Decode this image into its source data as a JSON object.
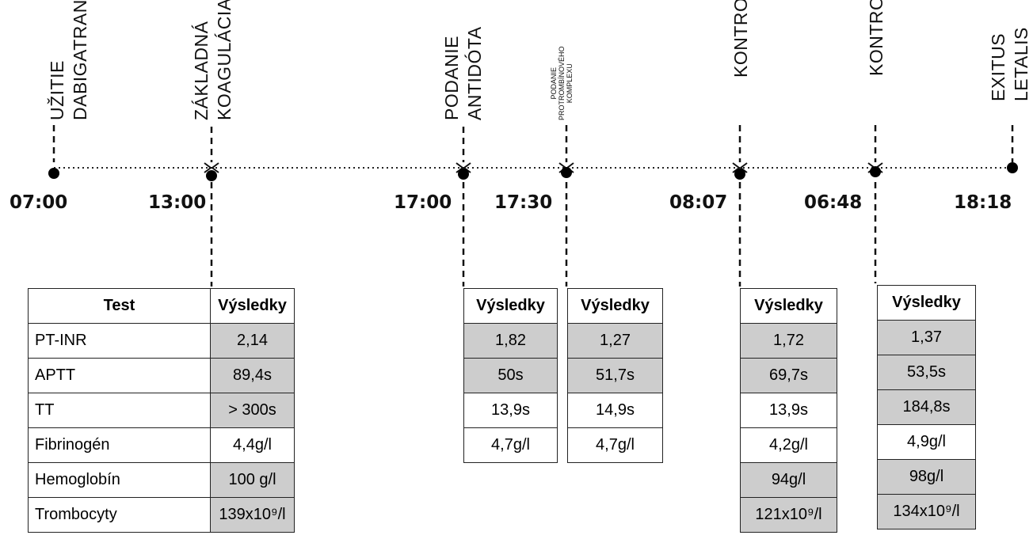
{
  "events": [
    {
      "lines": [
        "UŽITIE",
        "DABIGATRANU"
      ],
      "time": "07:00"
    },
    {
      "lines": [
        "ZÁKLADNÁ",
        "KOAGULÁCIA"
      ],
      "time": "13:00"
    },
    {
      "lines": [
        "PODANIE",
        "ANTIDÓTA"
      ],
      "time": "17:00"
    },
    {
      "lines": [
        "PODANIE",
        "PROTROMBÍNOVÉHO",
        "KOMPLEXU"
      ],
      "time": "17:30"
    },
    {
      "lines": [
        "KONTROLA"
      ],
      "time": "08:07"
    },
    {
      "lines": [
        "KONTROLA"
      ],
      "time": "06:48"
    },
    {
      "lines": [
        "EXITUS",
        "LETALIS"
      ],
      "time": "18:18"
    }
  ],
  "tests": {
    "header": "Test",
    "rows": [
      "PT-INR",
      "APTT",
      "TT",
      "Fibrinogén",
      "Hemoglobín",
      "Trombocyty"
    ]
  },
  "results_header": "Výsledky",
  "results": [
    {
      "values": [
        "2,14",
        "89,4s",
        "> 300s",
        "4,4g/l",
        "100 g/l",
        "139x10⁹/l"
      ],
      "shade": [
        "g",
        "g",
        "g",
        "w",
        "g",
        "g"
      ]
    },
    {
      "values": [
        "1,82",
        "50s",
        "13,9s",
        "4,7g/l"
      ],
      "shade": [
        "g",
        "g",
        "w",
        "w"
      ]
    },
    {
      "values": [
        "1,27",
        "51,7s",
        "14,9s",
        "4,7g/l"
      ],
      "shade": [
        "g",
        "g",
        "w",
        "w"
      ]
    },
    {
      "values": [
        "1,72",
        "69,7s",
        "13,9s",
        "4,2g/l",
        "94g/l",
        "121x10⁹/l"
      ],
      "shade": [
        "g",
        "g",
        "w",
        "w",
        "g",
        "g"
      ]
    },
    {
      "values": [
        "1,37",
        "53,5s",
        "184,8s",
        "4,9g/l",
        "98g/l",
        "134x10⁹/l"
      ],
      "shade": [
        "g",
        "g",
        "g",
        "w",
        "g",
        "g"
      ]
    }
  ],
  "colors": {
    "shaded_cell": "#cdcdcd",
    "line": "#111111"
  }
}
